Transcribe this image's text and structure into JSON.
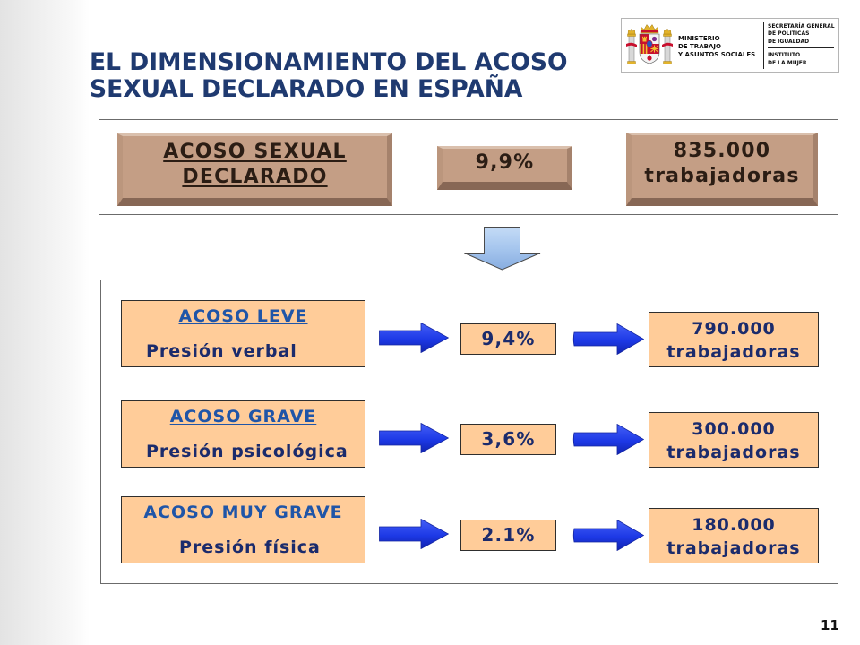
{
  "title": {
    "lines": [
      "EL DIMENSIONAMIENTO DEL ACOSO",
      "SEXUAL DECLARADO EN ESPAÑA"
    ]
  },
  "logo": {
    "ministry_lines": [
      "MINISTERIO",
      "DE TRABAJO",
      "Y ASUNTOS SOCIALES"
    ],
    "secretariat_lines": [
      "SECRETARÍA GENERAL",
      "DE POLÍTICAS",
      "DE IGUALDAD"
    ],
    "institute_lines": [
      "INSTITUTO",
      "DE LA MUJER"
    ]
  },
  "summary": {
    "label_lines": [
      "ACOSO SEXUAL",
      "DECLARADO"
    ],
    "percent": "9,9%",
    "count": "835.000",
    "count_unit": "trabajadoras"
  },
  "levels": [
    {
      "heading": "ACOSO LEVE",
      "description": "Presión verbal",
      "percent": "9,4%",
      "count": "790.000",
      "count_unit": "trabajadoras"
    },
    {
      "heading": "ACOSO GRAVE",
      "description": "Presión psicológica",
      "percent": "3,6%",
      "count": "300.000",
      "count_unit": "trabajadoras"
    },
    {
      "heading": "ACOSO MUY GRAVE",
      "description": "Presión física",
      "percent": "2.1%",
      "count": "180.000",
      "count_unit": "trabajadoras"
    }
  ],
  "page_number": "11",
  "icons": {
    "emblem": "coat-of-arms-icon",
    "down_arrow": "down-arrow-icon",
    "right_arrow": "right-arrow-icon"
  },
  "colors": {
    "title": "#1f3a70",
    "summary_box_fill": "#c49e85",
    "summary_text": "#2b1d14",
    "level_box_fill": "#ffcc99",
    "body_text": "#1b2b6c",
    "link_text": "#1f55a8",
    "arrow_fill": "#1d39e6",
    "down_arrow_fill": "#a6c6ee"
  }
}
